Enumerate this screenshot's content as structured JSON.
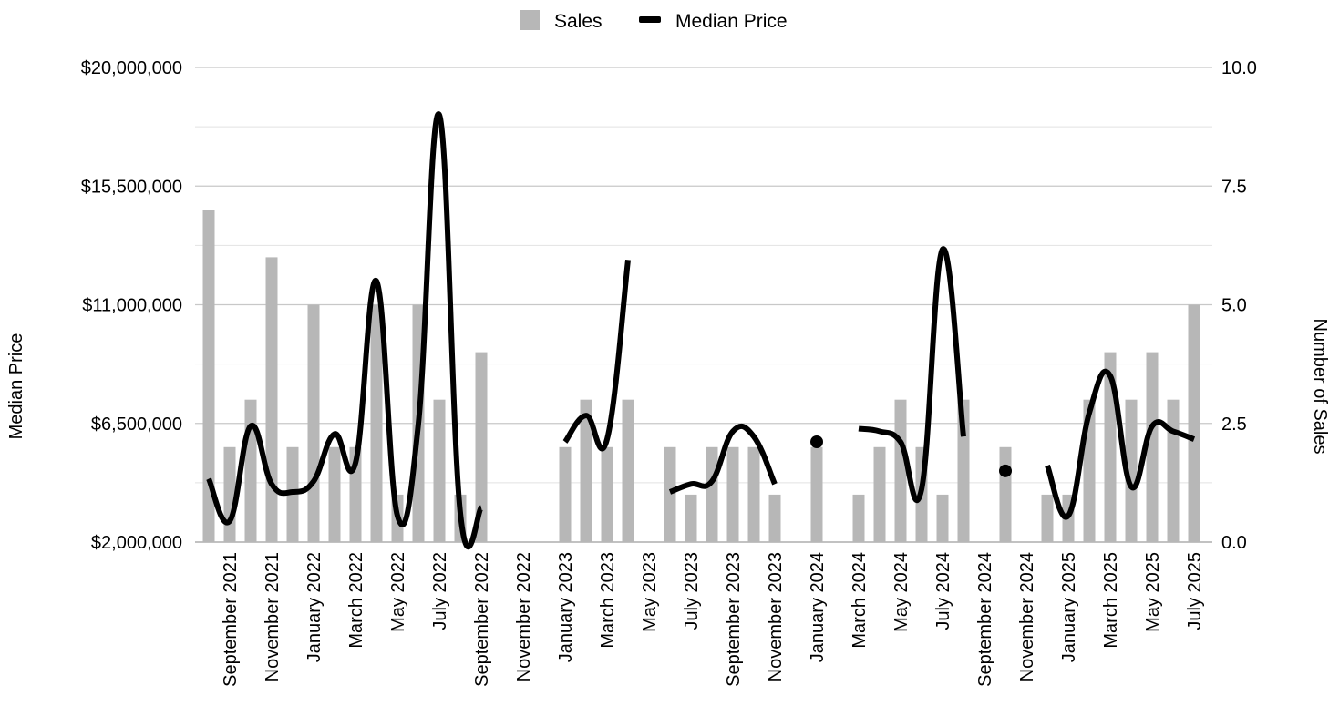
{
  "chart_data": {
    "type": "bar",
    "title": "",
    "legend": {
      "placement": "top-center"
    },
    "grid": true,
    "x_ticks": [
      "September 2021",
      "November 2021",
      "January 2022",
      "March 2022",
      "May 2022",
      "July 2022",
      "September 2022",
      "November 2022",
      "January 2023",
      "March 2023",
      "May 2023",
      "July 2023",
      "September 2023",
      "November 2023",
      "January 2024",
      "March 2024",
      "May 2024",
      "July 2024",
      "September 2024",
      "November 2024",
      "January 2025",
      "March 2025",
      "May 2025",
      "July 2025"
    ],
    "left_axis": {
      "label": "Median Price",
      "range": [
        2000000,
        20000000
      ],
      "ticks": [
        "$2,000,000",
        "$6,500,000",
        "$11,000,000",
        "$15,500,000",
        "$20,000,000"
      ]
    },
    "right_axis": {
      "label": "Number of Sales",
      "range": [
        0,
        10
      ],
      "ticks": [
        "0.0",
        "2.5",
        "5.0",
        "7.5",
        "10.0"
      ]
    },
    "colors": {
      "sales": "#b7b7b7",
      "median_price": "#000000",
      "grid_major": "#c8c8c8",
      "grid_minor": "#e2e2e2"
    },
    "series": [
      {
        "name": "Sales",
        "type": "bar",
        "axis": "right",
        "x": [
          "Aug 2021",
          "Sep 2021",
          "Oct 2021",
          "Nov 2021",
          "Dec 2021",
          "Jan 2022",
          "Feb 2022",
          "Mar 2022",
          "Apr 2022",
          "May 2022",
          "Jun 2022",
          "Jul 2022",
          "Aug 2022",
          "Sep 2022",
          "Oct 2022",
          "Nov 2022",
          "Dec 2022",
          "Jan 2023",
          "Feb 2023",
          "Mar 2023",
          "Apr 2023",
          "May 2023",
          "Jun 2023",
          "Jul 2023",
          "Aug 2023",
          "Sep 2023",
          "Oct 2023",
          "Nov 2023",
          "Dec 2023",
          "Jan 2024",
          "Feb 2024",
          "Mar 2024",
          "Apr 2024",
          "May 2024",
          "Jun 2024",
          "Jul 2024",
          "Aug 2024",
          "Sep 2024",
          "Oct 2024",
          "Nov 2024",
          "Dec 2024",
          "Jan 2025",
          "Feb 2025",
          "Mar 2025",
          "Apr 2025",
          "May 2025",
          "Jun 2025",
          "Jul 2025"
        ],
        "values": [
          7,
          2,
          3,
          6,
          2,
          5,
          2,
          2,
          5,
          1,
          5,
          3,
          1,
          4,
          0,
          0,
          0,
          2,
          3,
          2,
          3,
          0,
          2,
          1,
          2,
          2,
          2,
          1,
          0,
          2,
          0,
          1,
          2,
          3,
          2,
          1,
          3,
          0,
          2,
          0,
          1,
          1,
          3,
          4,
          3,
          4,
          3,
          5
        ]
      },
      {
        "name": "Median Price",
        "type": "line",
        "axis": "left",
        "segments": [
          {
            "x": [
              "Aug 2021",
              "Sep 2021",
              "Oct 2021",
              "Nov 2021",
              "Dec 2021",
              "Jan 2022",
              "Feb 2022",
              "Mar 2022",
              "Apr 2022",
              "May 2022",
              "Jun 2022",
              "Jul 2022",
              "Aug 2022",
              "Sep 2022"
            ],
            "values": [
              4400000,
              2800000,
              6400000,
              4200000,
              3900000,
              4300000,
              6100000,
              5000000,
              11900000,
              3000000,
              6500000,
              18200000,
              3100000,
              3300000
            ]
          },
          {
            "x": [
              "Jan 2023",
              "Feb 2023",
              "Mar 2023",
              "Apr 2023"
            ],
            "values": [
              5800000,
              6800000,
              5900000,
              12700000
            ]
          },
          {
            "x": [
              "Jun 2023",
              "Jul 2023",
              "Aug 2023",
              "Sep 2023",
              "Oct 2023",
              "Nov 2023"
            ],
            "values": [
              3900000,
              4200000,
              4300000,
              6200000,
              6000000,
              4200000
            ]
          },
          {
            "x": [
              "Jan 2024"
            ],
            "values": [
              5800000
            ]
          },
          {
            "x": [
              "Mar 2024",
              "Apr 2024",
              "May 2024",
              "Jun 2024",
              "Jul 2024",
              "Aug 2024"
            ],
            "values": [
              6300000,
              6200000,
              5800000,
              4000000,
              13100000,
              6000000
            ]
          },
          {
            "x": [
              "Oct 2024"
            ],
            "values": [
              4700000
            ]
          },
          {
            "x": [
              "Dec 2024",
              "Jan 2025",
              "Feb 2025",
              "Mar 2025",
              "Apr 2025",
              "May 2025",
              "Jun 2025",
              "Jul 2025"
            ],
            "values": [
              4900000,
              3000000,
              6900000,
              8300000,
              4100000,
              6400000,
              6200000,
              5900000
            ]
          }
        ]
      }
    ]
  }
}
